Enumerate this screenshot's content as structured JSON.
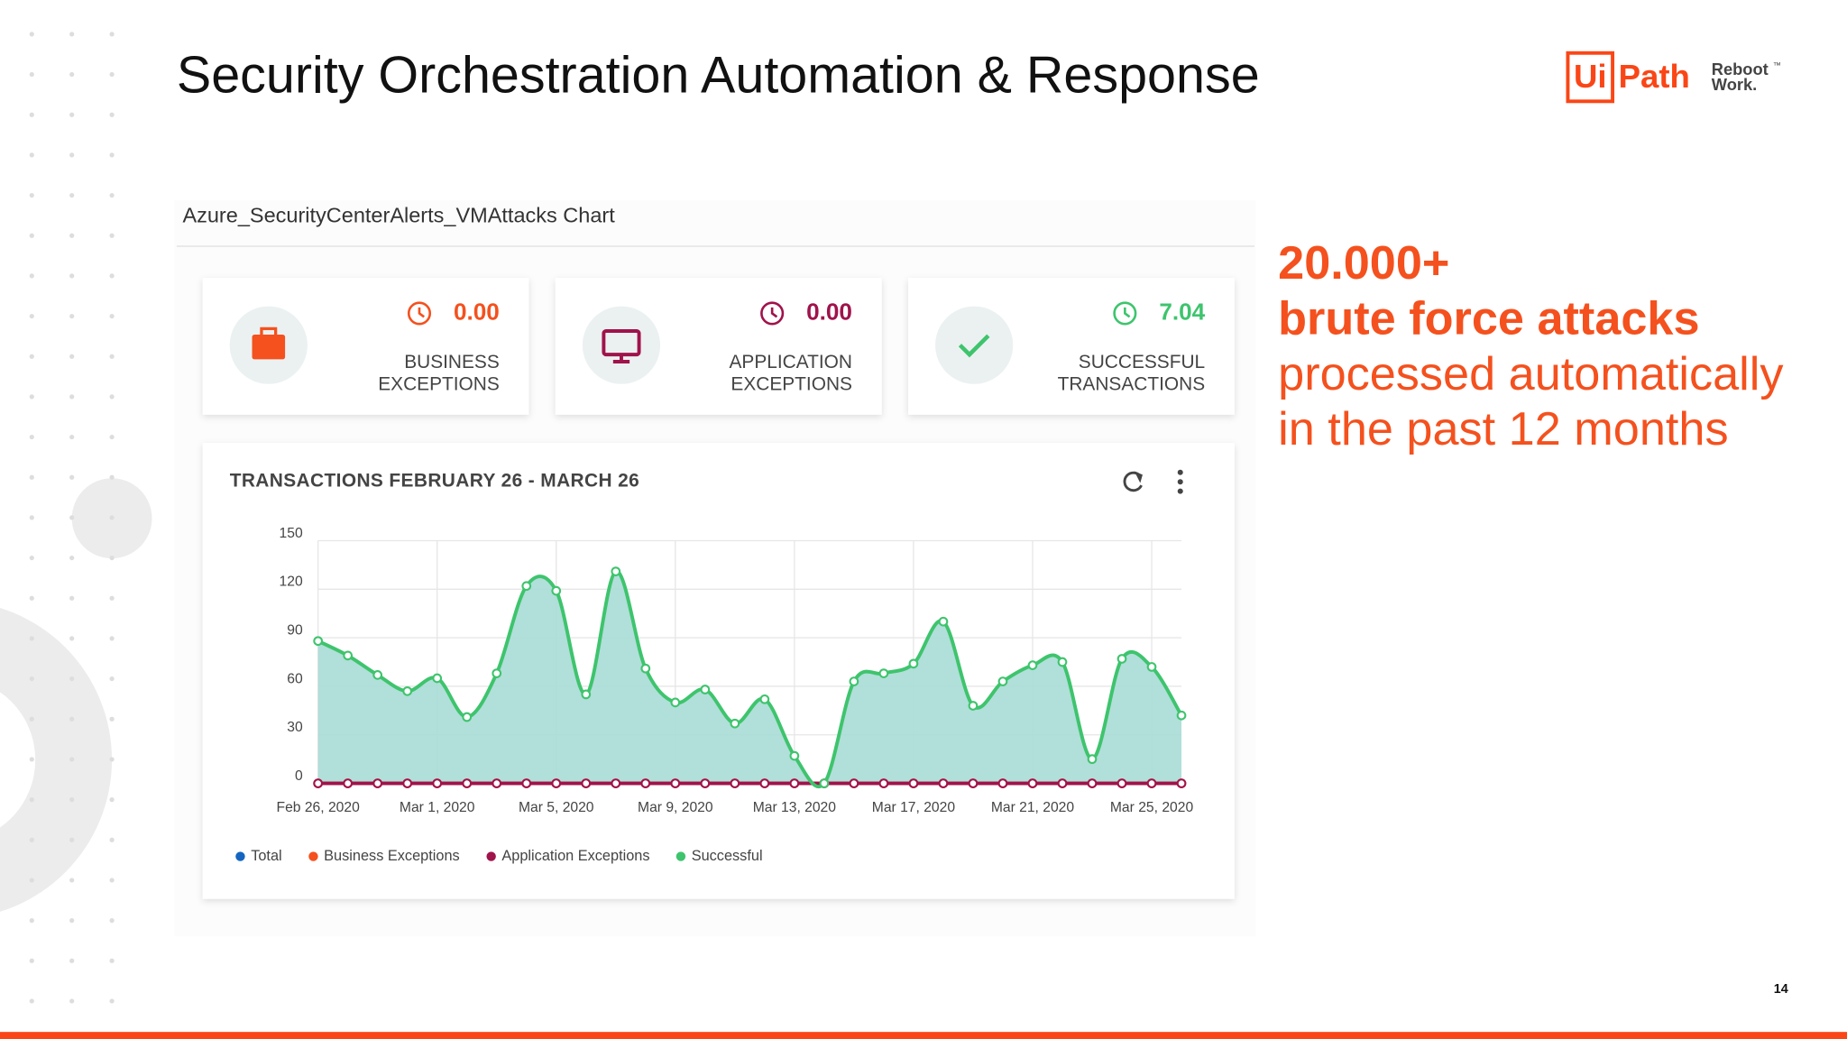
{
  "slide": {
    "title": "Security Orchestration Automation & Response",
    "page_number": "14",
    "logo": {
      "mark": "Ui",
      "name": "Path",
      "tagline_1": "Reboot",
      "tagline_tm": "™",
      "tagline_2": "Work."
    }
  },
  "panel": {
    "title": "Azure_SecurityCenterAlerts_VMAttacks Chart"
  },
  "stats": [
    {
      "value": "0.00",
      "label_1": "BUSINESS",
      "label_2": "EXCEPTIONS",
      "color": "#f4511e"
    },
    {
      "value": "0.00",
      "label_1": "APPLICATION",
      "label_2": "EXCEPTIONS",
      "color": "#a0134b"
    },
    {
      "value": "7.04",
      "label_1": "SUCCESSFUL",
      "label_2": "TRANSACTIONS",
      "color": "#3ec46d"
    }
  ],
  "callout": {
    "line_1": "20.000+",
    "line_2": "brute force attacks",
    "line_3": "processed automatically",
    "line_4": "in the past 12 months"
  },
  "chart_data": {
    "type": "line",
    "title": "TRANSACTIONS FEBRUARY 26 - MARCH 26",
    "categories": [
      "Feb 26, 2020",
      null,
      null,
      null,
      "Mar 1, 2020",
      null,
      null,
      null,
      "Mar 5, 2020",
      null,
      null,
      null,
      "Mar 9, 2020",
      null,
      null,
      null,
      "Mar 13, 2020",
      null,
      null,
      null,
      "Mar 17, 2020",
      null,
      null,
      null,
      "Mar 21, 2020",
      null,
      null,
      null,
      "Mar 25, 2020",
      null
    ],
    "series": [
      {
        "name": "Total",
        "color": "#1565c0",
        "values": [
          88,
          79,
          67,
          57,
          65,
          41,
          68,
          122,
          119,
          55,
          131,
          71,
          50,
          58,
          37,
          52,
          17,
          0,
          63,
          68,
          74,
          100,
          48,
          63,
          73,
          75,
          15,
          77,
          72,
          42
        ]
      },
      {
        "name": "Business Exceptions",
        "color": "#f4511e",
        "values": [
          0,
          0,
          0,
          0,
          0,
          0,
          0,
          0,
          0,
          0,
          0,
          0,
          0,
          0,
          0,
          0,
          0,
          0,
          0,
          0,
          0,
          0,
          0,
          0,
          0,
          0,
          0,
          0,
          0,
          0
        ]
      },
      {
        "name": "Application Exceptions",
        "color": "#a0134b",
        "values": [
          0,
          0,
          0,
          0,
          0,
          0,
          0,
          0,
          0,
          0,
          0,
          0,
          0,
          0,
          0,
          0,
          0,
          0,
          0,
          0,
          0,
          0,
          0,
          0,
          0,
          0,
          0,
          0,
          0,
          0
        ]
      },
      {
        "name": "Successful",
        "color": "#3ec46d",
        "values": [
          88,
          79,
          67,
          57,
          65,
          41,
          68,
          122,
          119,
          55,
          131,
          71,
          50,
          58,
          37,
          52,
          17,
          0,
          63,
          68,
          74,
          100,
          48,
          63,
          73,
          75,
          15,
          77,
          72,
          42
        ]
      }
    ],
    "area_color": "#a8dcd5",
    "ylim": [
      0,
      150
    ],
    "yticks": [
      0,
      30,
      60,
      90,
      120,
      150
    ],
    "grid": true
  }
}
